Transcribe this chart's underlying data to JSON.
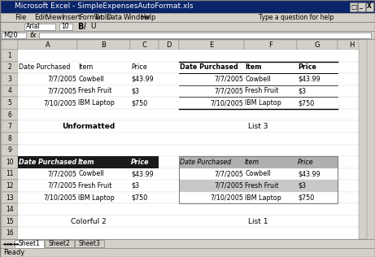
{
  "title": "Microsoft Excel - SimpleExpensesAutoFormat.xls",
  "bg_color": "#d4d0c8",
  "spreadsheet_bg": "#ffffff",
  "menu_items": [
    "File",
    "Edit",
    "View",
    "Insert",
    "Format",
    "Tools",
    "Data",
    "Window",
    "Help"
  ],
  "cell_ref": "M20",
  "font_name": "Arial",
  "font_size": "10",
  "col_headers": [
    "A",
    "B",
    "C",
    "D",
    "E",
    "F",
    "G",
    "H"
  ],
  "row_headers": [
    "1",
    "2",
    "3",
    "4",
    "5",
    "6",
    "7",
    "8",
    "9",
    "10",
    "11",
    "12",
    "13",
    "14",
    "15",
    "16"
  ],
  "table_data": [
    [
      "7/7/2005",
      "Cowbell",
      "$43.99"
    ],
    [
      "7/7/2005",
      "Fresh Fruit",
      "$3"
    ],
    [
      "7/10/2005",
      "IBM Laptop",
      "$750"
    ]
  ],
  "headers": [
    "Date Purchased",
    "Item",
    "Price"
  ],
  "unformatted_label": "Unformatted",
  "colorful2_label": "Colorful 2",
  "list3_label": "List 3",
  "list1_label": "List 1",
  "colorful2_header_bg": "#1a1a1a",
  "colorful2_header_fg": "#ffffff",
  "list1_header_bg": "#b0b0b0",
  "list1_row_alt_bg": "#c8c8c8",
  "list3_border_color": "#000000",
  "sheet_tabs": [
    "Sheet1",
    "Sheet2",
    "Sheet3"
  ]
}
